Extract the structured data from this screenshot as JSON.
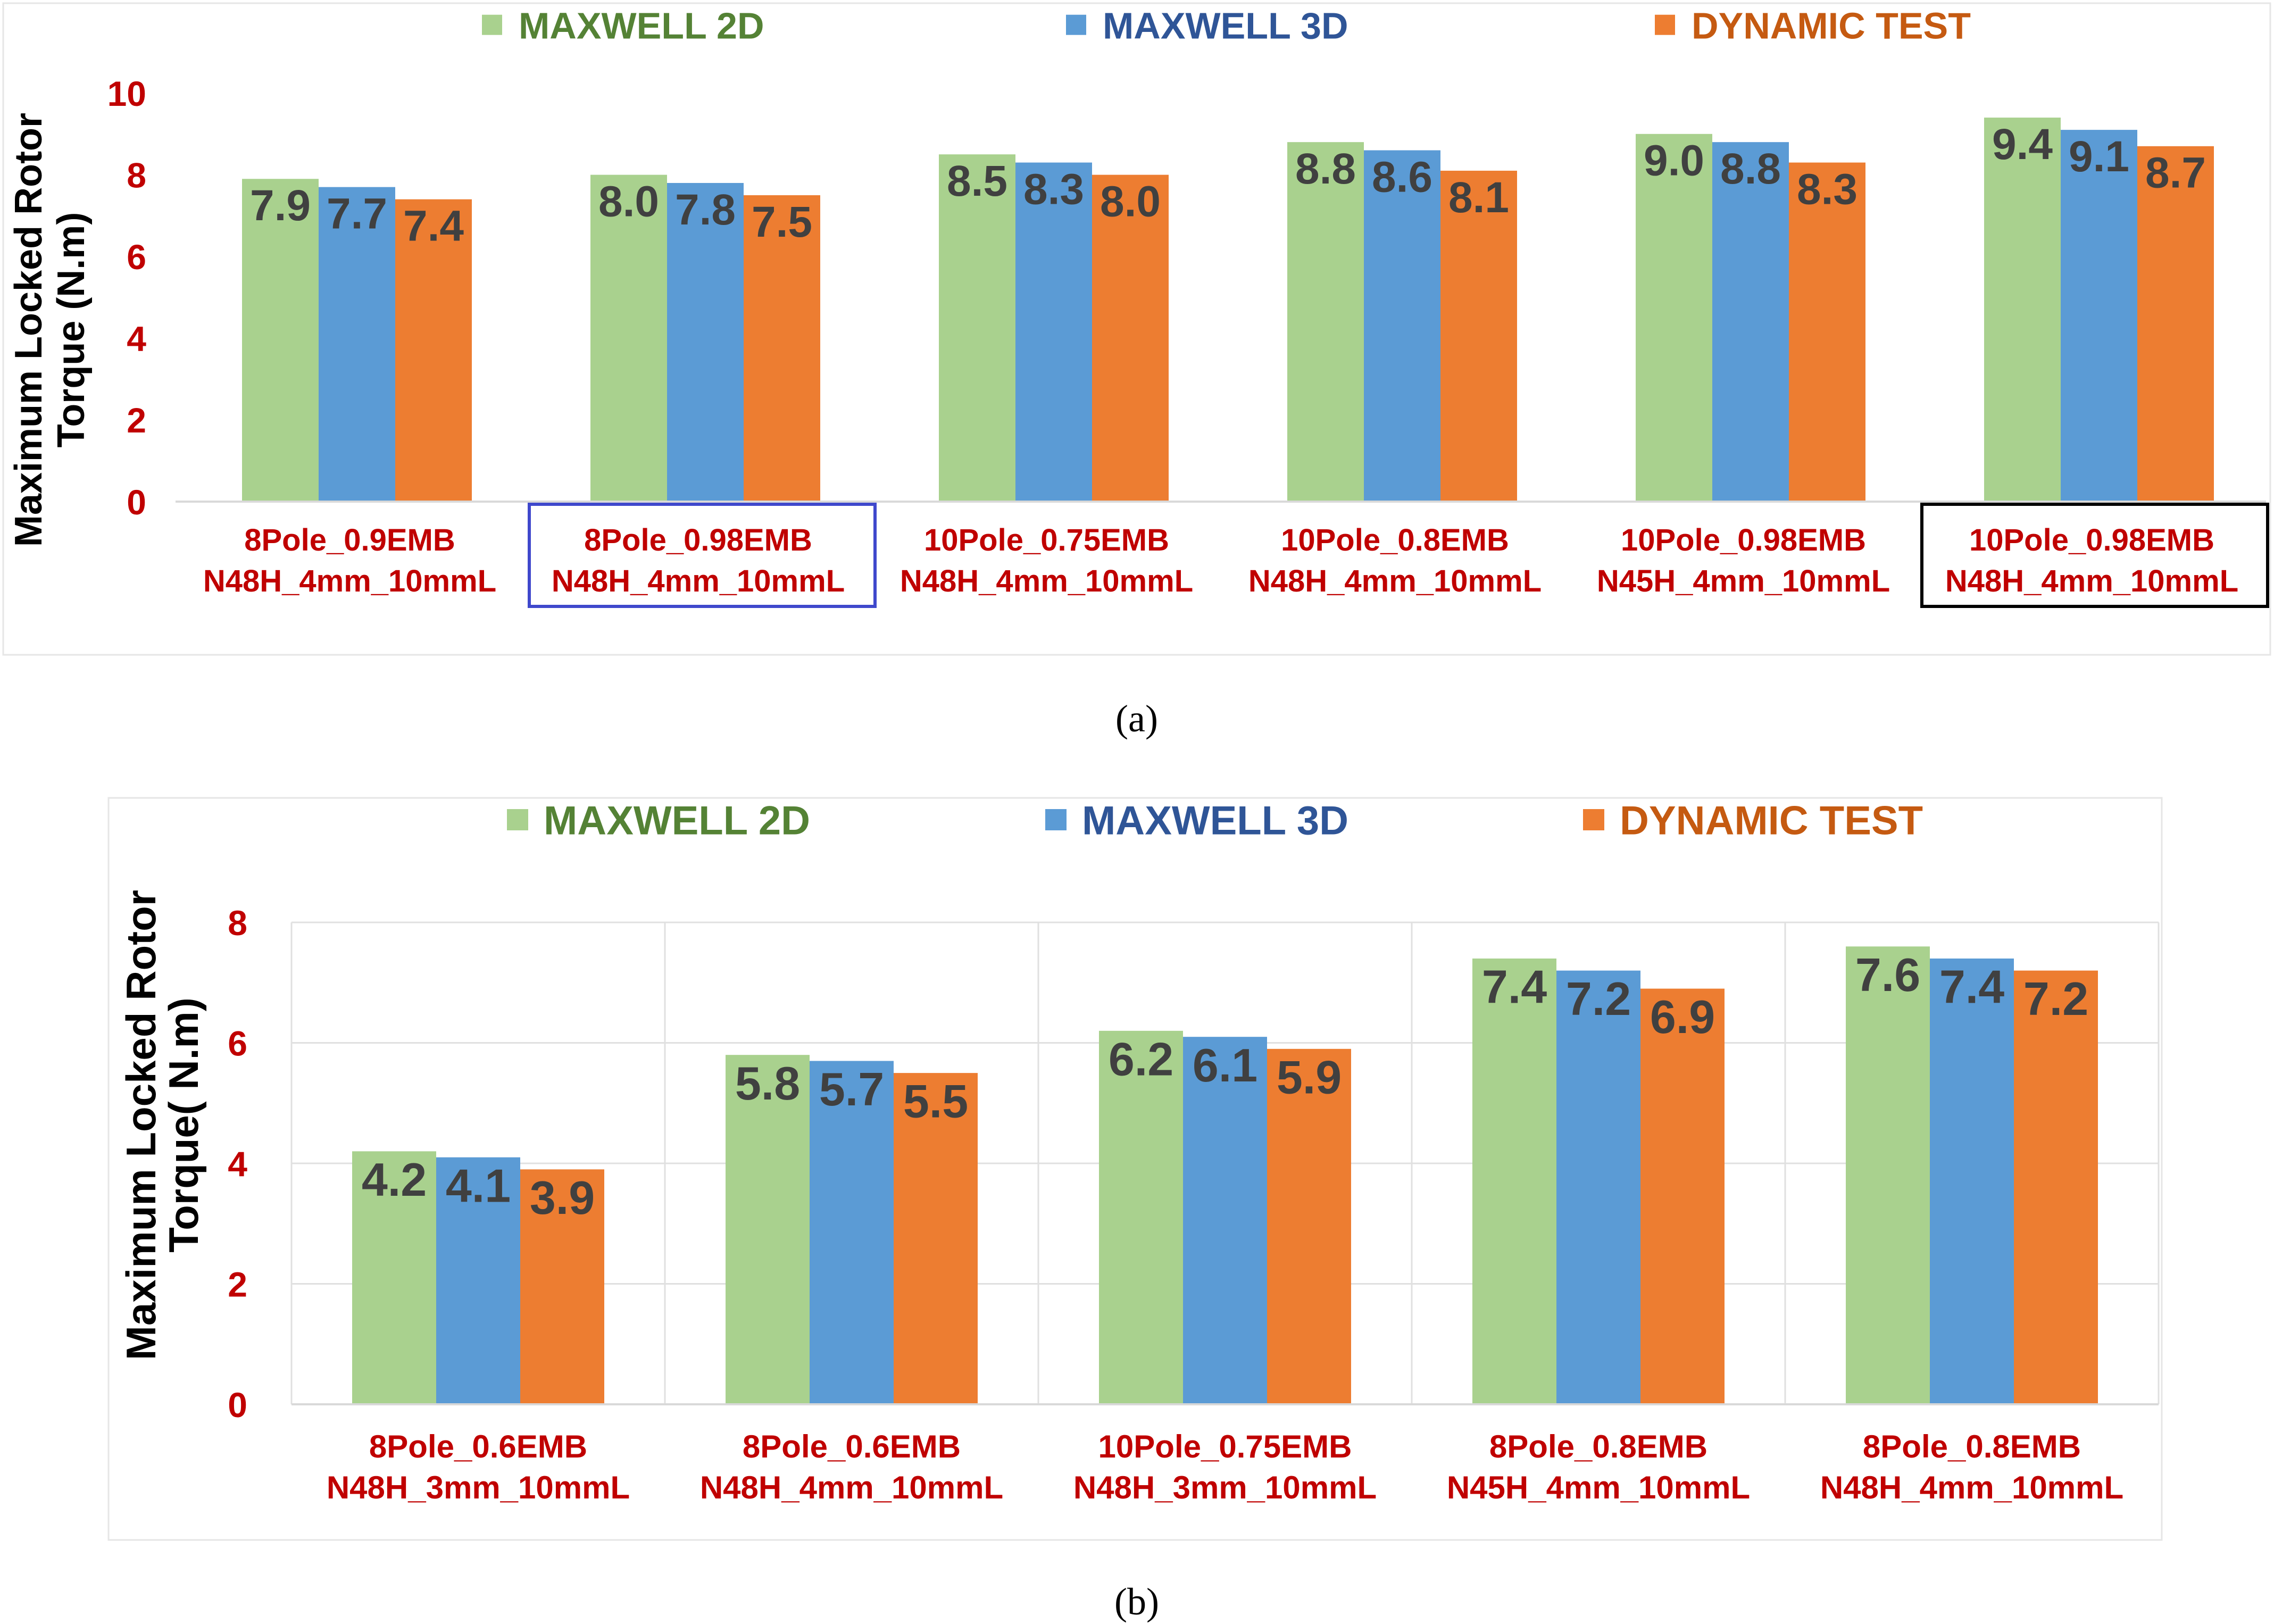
{
  "colors": {
    "s2d": "#A9D18E",
    "s3d": "#5B9BD5",
    "dyn": "#ED7D31",
    "legend_s2d_text": "#548235",
    "legend_s3d_text": "#2F5597",
    "legend_dyn_text": "#C55A11",
    "tick_text": "#C00000",
    "cat_text": "#C00000",
    "ylabel_text": "#000000",
    "data_label": "#404040",
    "grid": "#E0E0E0",
    "highlight_blue": "#3F48CC",
    "highlight_black": "#000000"
  },
  "chart_data": [
    {
      "type": "bar",
      "panel": "a",
      "caption": "(a)",
      "ylabel": [
        "Maximum Locked Rotor",
        "Torque (N.m)"
      ],
      "ylim": [
        0,
        10
      ],
      "yticks": [
        0,
        2,
        4,
        6,
        8,
        10
      ],
      "legend": [
        "MAXWELL 2D",
        "MAXWELL 3D",
        "DYNAMIC TEST"
      ],
      "categories": [
        [
          "8Pole_0.9EMB",
          "N48H_4mm_10mmL"
        ],
        [
          "8Pole_0.98EMB",
          "N48H_4mm_10mmL"
        ],
        [
          "10Pole_0.75EMB",
          "N48H_4mm_10mmL"
        ],
        [
          "10Pole_0.8EMB",
          "N48H_4mm_10mmL"
        ],
        [
          "10Pole_0.98EMB",
          "N45H_4mm_10mmL"
        ],
        [
          "10Pole_0.98EMB",
          "N48H_4mm_10mmL"
        ]
      ],
      "highlight": [
        null,
        "blue",
        null,
        null,
        null,
        "black"
      ],
      "series": [
        {
          "name": "MAXWELL 2D",
          "values": [
            7.9,
            8.0,
            8.5,
            8.8,
            9.0,
            9.4
          ]
        },
        {
          "name": "MAXWELL 3D",
          "values": [
            7.7,
            7.8,
            8.3,
            8.6,
            8.8,
            9.1
          ]
        },
        {
          "name": "DYNAMIC TEST",
          "values": [
            7.4,
            7.5,
            8.0,
            8.1,
            8.3,
            8.7
          ]
        }
      ],
      "grid": false
    },
    {
      "type": "bar",
      "panel": "b",
      "caption": "(b)",
      "ylabel": [
        "Maximum Locked Rotor",
        "Torque( N.m)"
      ],
      "ylim": [
        0,
        8
      ],
      "yticks": [
        0,
        2,
        4,
        6,
        8
      ],
      "legend": [
        "MAXWELL 2D",
        "MAXWELL 3D",
        "DYNAMIC TEST"
      ],
      "categories": [
        [
          "8Pole_0.6EMB",
          "N48H_3mm_10mmL"
        ],
        [
          "8Pole_0.6EMB",
          "N48H_4mm_10mmL"
        ],
        [
          "10Pole_0.75EMB",
          "N48H_3mm_10mmL"
        ],
        [
          "8Pole_0.8EMB",
          "N45H_4mm_10mmL"
        ],
        [
          "8Pole_0.8EMB",
          "N48H_4mm_10mmL"
        ]
      ],
      "highlight": [
        null,
        null,
        null,
        null,
        null
      ],
      "series": [
        {
          "name": "MAXWELL 2D",
          "values": [
            4.2,
            5.8,
            6.2,
            7.4,
            7.6
          ]
        },
        {
          "name": "MAXWELL 3D",
          "values": [
            4.1,
            5.7,
            6.1,
            7.2,
            7.4
          ]
        },
        {
          "name": "DYNAMIC TEST",
          "values": [
            3.9,
            5.5,
            5.9,
            6.9,
            7.2
          ]
        }
      ],
      "grid": true
    }
  ]
}
